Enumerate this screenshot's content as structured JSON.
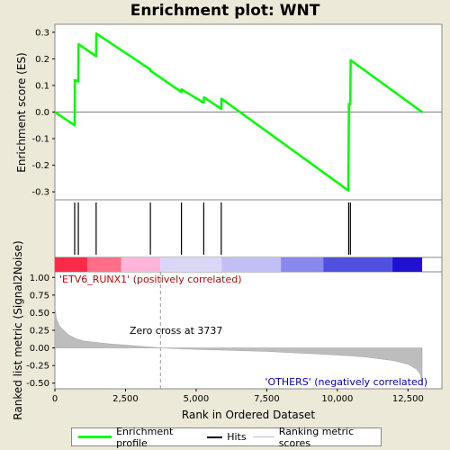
{
  "title": "Enrichment plot: WNT",
  "chart_data": {
    "type": "line",
    "title": "Enrichment plot: WNT",
    "es_axis": {
      "ylabel": "Enrichment score (ES)",
      "ylim": [
        -0.33,
        0.33
      ],
      "ticks": [
        -0.3,
        -0.2,
        -0.1,
        0.0,
        0.1,
        0.2,
        0.3
      ],
      "tick_labels": [
        "-0.3",
        "-0.2",
        "-0.1",
        "0.0",
        "0.1",
        "0.2",
        "0.3"
      ]
    },
    "metric_axis": {
      "ylabel": "Ranked list metric (Signal2Noise)",
      "ylim": [
        -0.58,
        1.08
      ],
      "ticks": [
        -0.5,
        -0.25,
        0.0,
        0.25,
        0.5,
        0.75,
        1.0
      ],
      "tick_labels": [
        "-0.50",
        "-0.25",
        "0.00",
        "0.25",
        "0.50",
        "0.75",
        "1.00"
      ]
    },
    "x_axis": {
      "xlabel": "Rank in Ordered Dataset",
      "xlim": [
        0,
        13700
      ],
      "ticks": [
        0,
        2500,
        5000,
        7500,
        10000,
        12500
      ],
      "tick_labels": [
        "0",
        "2,500",
        "5,000",
        "7,500",
        "10,000",
        "12,500"
      ]
    },
    "series": [
      {
        "name": "Enrichment profile",
        "color": "#00ff00",
        "x": [
          0,
          700,
          710,
          830,
          840,
          1460,
          1470,
          3380,
          3390,
          4480,
          4490,
          5270,
          5280,
          5890,
          5900,
          10390,
          10400,
          10410,
          10460,
          10470,
          13000
        ],
        "y": [
          0.0,
          -0.05,
          0.12,
          0.115,
          0.255,
          0.21,
          0.295,
          0.16,
          0.155,
          0.075,
          0.085,
          0.035,
          0.055,
          0.012,
          0.05,
          -0.295,
          -0.13,
          0.03,
          0.03,
          0.195,
          0.0
        ]
      }
    ],
    "hits": [
      700,
      830,
      1460,
      3380,
      4480,
      5270,
      5890,
      10400,
      10460
    ],
    "ranked_metric": {
      "x": [
        0,
        50,
        150,
        300,
        500,
        750,
        1000,
        1500,
        2000,
        2500,
        3000,
        3737,
        5000,
        7500,
        10000,
        11000,
        12000,
        12500,
        12800,
        12950,
        13000
      ],
      "y": [
        0.58,
        0.42,
        0.32,
        0.25,
        0.18,
        0.13,
        0.1,
        0.075,
        0.055,
        0.04,
        0.025,
        0.0,
        -0.02,
        -0.05,
        -0.1,
        -0.13,
        -0.18,
        -0.23,
        -0.3,
        -0.38,
        -0.55
      ]
    },
    "zero_line": 0.0,
    "zero_cross_x": 3737,
    "annotations": {
      "zero_cross": "Zero cross at 3737",
      "positive": "'ETV6_RUNX1' (positively correlated)",
      "negative": "'OTHERS' (negatively correlated)"
    },
    "heatmap_segments": [
      {
        "x0": 0,
        "x1": 1150,
        "color": "#ff2a4a"
      },
      {
        "x0": 1150,
        "x1": 2350,
        "color": "#ff6e86"
      },
      {
        "x0": 2350,
        "x1": 3737,
        "color": "#ffb4d8"
      },
      {
        "x0": 3737,
        "x1": 5900,
        "color": "#d8d8f6"
      },
      {
        "x0": 5900,
        "x1": 8000,
        "color": "#c0c0f4"
      },
      {
        "x0": 8000,
        "x1": 9500,
        "color": "#8888ee"
      },
      {
        "x0": 9500,
        "x1": 11950,
        "color": "#5050e0"
      },
      {
        "x0": 11950,
        "x1": 13000,
        "color": "#2010d0"
      }
    ],
    "legend_placement": "bottom"
  },
  "legend": {
    "items": [
      {
        "label": "Enrichment profile",
        "color": "#00ff00"
      },
      {
        "label": "Hits",
        "color": "#000000"
      },
      {
        "label": "Ranking metric scores",
        "color": "#c0c0c0"
      }
    ]
  }
}
